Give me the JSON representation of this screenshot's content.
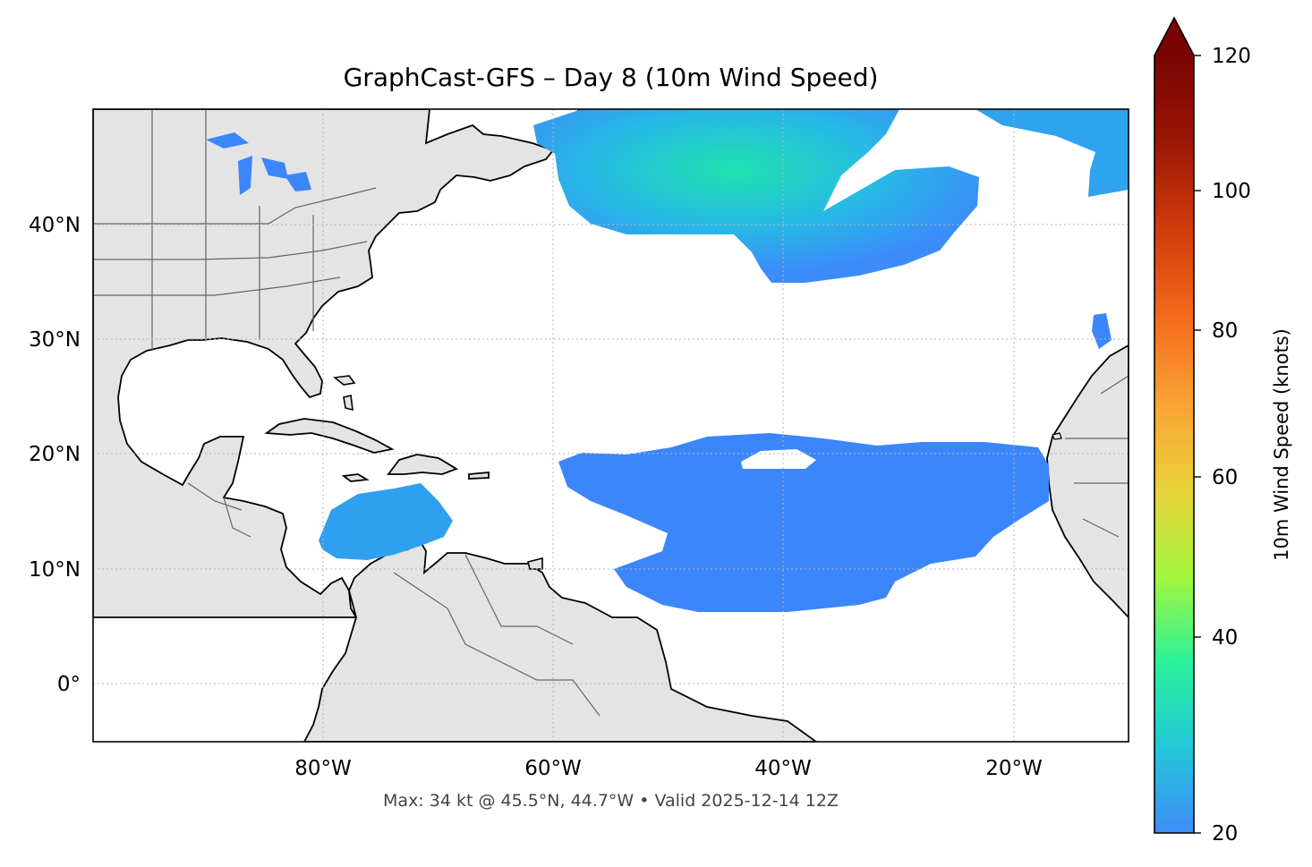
{
  "title": "GraphCast-GFS – Day 8 (10m Wind Speed)",
  "footer": "Max: 34 kt @ 45.5°N, 44.7°W • Valid 2025-12-14 12Z",
  "map": {
    "projection": "equirectangular",
    "lon_range": [
      -100,
      -10
    ],
    "lat_range": [
      -5,
      50
    ],
    "gridlines": true,
    "land_color": "#e4e4e4",
    "ocean_color": "#ffffff",
    "y_tick_labels": [
      "40°N",
      "30°N",
      "20°N",
      "10°N",
      "0°"
    ],
    "x_tick_labels": [
      "80°W",
      "60°W",
      "40°W",
      "20°W"
    ],
    "wind_field_colors": [
      "#3b86fb",
      "#2aa6ee",
      "#1fe2b0"
    ]
  },
  "colorbar": {
    "label": "10m Wind Speed (knots)",
    "min": 20,
    "max": 120,
    "extend": "max",
    "tick_labels": [
      "120",
      "100",
      "80",
      "60",
      "40",
      "20"
    ],
    "colormap": [
      "#3e8cf8",
      "#22c8d8",
      "#2af29a",
      "#a4f63c",
      "#e8d23a",
      "#fba435",
      "#f46c1c",
      "#cf3a0b",
      "#9a1605",
      "#7a0403"
    ]
  }
}
